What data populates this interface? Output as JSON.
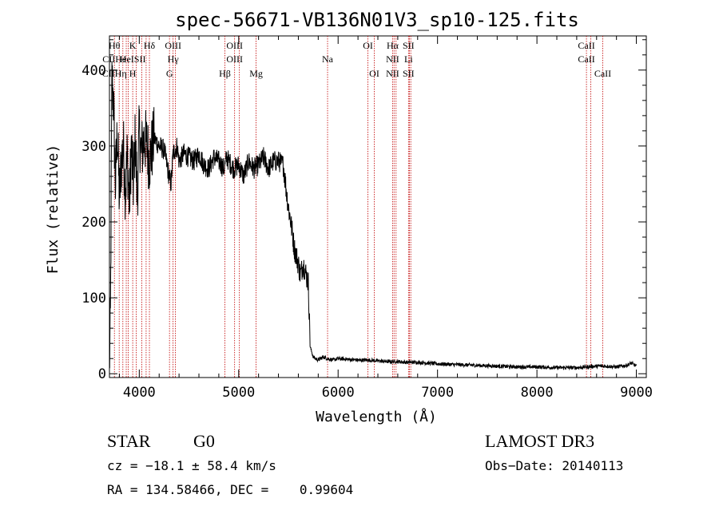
{
  "chart_data": {
    "type": "line",
    "title": "spec-56671-VB136N01V3_sp10-125.fits",
    "xlabel": "Wavelength (Å)",
    "ylabel": "Flux (relative)",
    "xlim": [
      3700,
      9100
    ],
    "ylim": [
      -5,
      445
    ],
    "xticks": [
      4000,
      5000,
      6000,
      7000,
      8000,
      9000
    ],
    "yticks": [
      0,
      100,
      200,
      300,
      400
    ],
    "grid": false,
    "series": [
      {
        "name": "flux",
        "x": [
          3700,
          3710,
          3725,
          3740,
          3760,
          3780,
          3800,
          3820,
          3840,
          3860,
          3880,
          3900,
          3920,
          3940,
          3960,
          3980,
          4000,
          4020,
          4050,
          4080,
          4100,
          4150,
          4200,
          4250,
          4300,
          4320,
          4340,
          4380,
          4400,
          4450,
          4500,
          4550,
          4600,
          4650,
          4700,
          4750,
          4800,
          4850,
          4880,
          4900,
          4950,
          5000,
          5050,
          5100,
          5150,
          5200,
          5250,
          5300,
          5350,
          5400,
          5450,
          5480,
          5500,
          5530,
          5560,
          5600,
          5620,
          5650,
          5680,
          5700,
          5720,
          5750,
          5800,
          5850,
          5890,
          5950,
          6000,
          6100,
          6200,
          6300,
          6400,
          6500,
          6600,
          6700,
          6800,
          6900,
          7000,
          7200,
          7400,
          7600,
          7800,
          8000,
          8200,
          8400,
          8500,
          8600,
          8700,
          8800,
          8900,
          8950,
          9000
        ],
        "y": [
          10,
          70,
          390,
          360,
          250,
          320,
          230,
          280,
          300,
          240,
          290,
          220,
          300,
          250,
          310,
          230,
          320,
          290,
          310,
          300,
          280,
          310,
          300,
          295,
          260,
          250,
          290,
          300,
          280,
          290,
          285,
          280,
          290,
          275,
          270,
          285,
          280,
          270,
          285,
          280,
          270,
          275,
          260,
          280,
          270,
          275,
          285,
          270,
          280,
          280,
          275,
          240,
          220,
          195,
          165,
          145,
          130,
          145,
          130,
          120,
          35,
          22,
          18,
          22,
          20,
          18,
          20,
          19,
          18,
          18,
          17,
          16,
          16,
          15,
          15,
          14,
          13,
          12,
          11,
          10,
          9,
          9,
          8,
          8,
          9,
          10,
          10,
          9,
          11,
          14,
          10
        ]
      }
    ],
    "lines": [
      {
        "x": 3750,
        "labels": [
          "Hθ",
          "CIIHe",
          "CIIHη"
        ]
      },
      {
        "x": 3798,
        "labels": []
      },
      {
        "x": 3835,
        "labels": []
      },
      {
        "x": 3869,
        "labels": []
      },
      {
        "x": 3889,
        "labels": []
      },
      {
        "x": 3934,
        "labels": [
          "K",
          "HeISII",
          "H"
        ]
      },
      {
        "x": 3969,
        "labels": []
      },
      {
        "x": 4026,
        "labels": []
      },
      {
        "x": 4069,
        "labels": []
      },
      {
        "x": 4102,
        "labels": [
          "Hδ",
          "",
          ""
        ]
      },
      {
        "x": 4304,
        "labels": [
          "",
          "",
          "G"
        ]
      },
      {
        "x": 4340,
        "labels": [
          "OIII",
          "Hγ",
          ""
        ]
      },
      {
        "x": 4363,
        "labels": []
      },
      {
        "x": 4861,
        "labels": [
          "",
          "",
          "Hβ"
        ]
      },
      {
        "x": 4959,
        "labels": [
          "OIII",
          "OIII",
          ""
        ]
      },
      {
        "x": 5007,
        "labels": []
      },
      {
        "x": 5175,
        "labels": [
          "",
          "",
          "Mg"
        ]
      },
      {
        "x": 5894,
        "labels": [
          "",
          "Na",
          ""
        ]
      },
      {
        "x": 6300,
        "labels": [
          "OI",
          "",
          ""
        ]
      },
      {
        "x": 6364,
        "labels": [
          "",
          "",
          "OI"
        ]
      },
      {
        "x": 6548,
        "labels": [
          "Hα",
          "NII",
          "NII"
        ]
      },
      {
        "x": 6563,
        "labels": []
      },
      {
        "x": 6583,
        "labels": []
      },
      {
        "x": 6708,
        "labels": [
          "SII",
          "Li",
          "SII"
        ]
      },
      {
        "x": 6717,
        "labels": []
      },
      {
        "x": 6731,
        "labels": []
      },
      {
        "x": 8498,
        "labels": [
          "CaII",
          "CaII",
          ""
        ]
      },
      {
        "x": 8542,
        "labels": []
      },
      {
        "x": 8662,
        "labels": [
          "",
          "",
          "CaII"
        ]
      }
    ],
    "line_color": "#c00000"
  },
  "info": {
    "class": "STAR",
    "subclass": "G0",
    "survey": "LAMOST DR3",
    "redshift": "cz = −18.1 ± 58.4 km/s",
    "obs_date": "Obs−Date: 20140113",
    "coords": "RA = 134.58466, DEC =    0.99604"
  }
}
